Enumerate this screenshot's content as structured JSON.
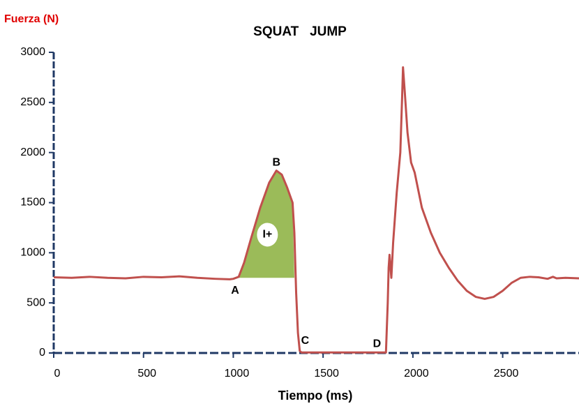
{
  "chart_data": {
    "type": "line",
    "title": "SQUAT   JUMP",
    "y_label": "Fuerza (N)",
    "x_label": "Tiempo (ms)",
    "xlim": [
      0,
      2925
    ],
    "ylim": [
      0,
      3000
    ],
    "xticks": [
      0,
      500,
      1000,
      1500,
      2000,
      2500
    ],
    "yticks": [
      0,
      500,
      1000,
      1500,
      2000,
      2500,
      3000
    ],
    "series": [
      {
        "color": "#c0504d",
        "x": [
          0,
          100,
          200,
          300,
          400,
          500,
          600,
          700,
          800,
          900,
          980,
          1000,
          1030,
          1060,
          1100,
          1150,
          1200,
          1240,
          1270,
          1300,
          1330,
          1340,
          1350,
          1360,
          1370,
          1380,
          1500,
          1700,
          1850,
          1860,
          1865,
          1870,
          1880,
          1890,
          1910,
          1930,
          1940,
          1945,
          1955,
          1970,
          1990,
          2010,
          2050,
          2100,
          2150,
          2200,
          2250,
          2300,
          2350,
          2400,
          2450,
          2500,
          2550,
          2600,
          2650,
          2700,
          2750,
          2780,
          2800,
          2850,
          2925
        ],
        "values": [
          755,
          750,
          760,
          750,
          745,
          760,
          755,
          765,
          750,
          740,
          735,
          740,
          760,
          900,
          1150,
          1450,
          1700,
          1820,
          1780,
          1650,
          1500,
          1200,
          600,
          200,
          20,
          5,
          5,
          5,
          5,
          500,
          850,
          980,
          750,
          1100,
          1600,
          2000,
          2550,
          2850,
          2600,
          2200,
          1900,
          1800,
          1450,
          1200,
          1000,
          850,
          720,
          620,
          560,
          540,
          560,
          620,
          700,
          750,
          760,
          755,
          740,
          760,
          745,
          750,
          745
        ]
      }
    ],
    "shaded_area": {
      "color": "#9bbb59",
      "x": [
        1030,
        1060,
        1100,
        1150,
        1200,
        1240,
        1270,
        1300,
        1330,
        1340
      ],
      "values": [
        750,
        900,
        1150,
        1450,
        1700,
        1820,
        1780,
        1650,
        1500,
        750
      ]
    },
    "annotations": [
      {
        "text": "A",
        "x": 1010,
        "y": 620
      },
      {
        "text": "B",
        "x": 1240,
        "y": 1900
      },
      {
        "text": "C",
        "x": 1400,
        "y": 120
      },
      {
        "text": "D",
        "x": 1800,
        "y": 90
      },
      {
        "text": "I+",
        "x": 1190,
        "y": 1180
      }
    ]
  }
}
